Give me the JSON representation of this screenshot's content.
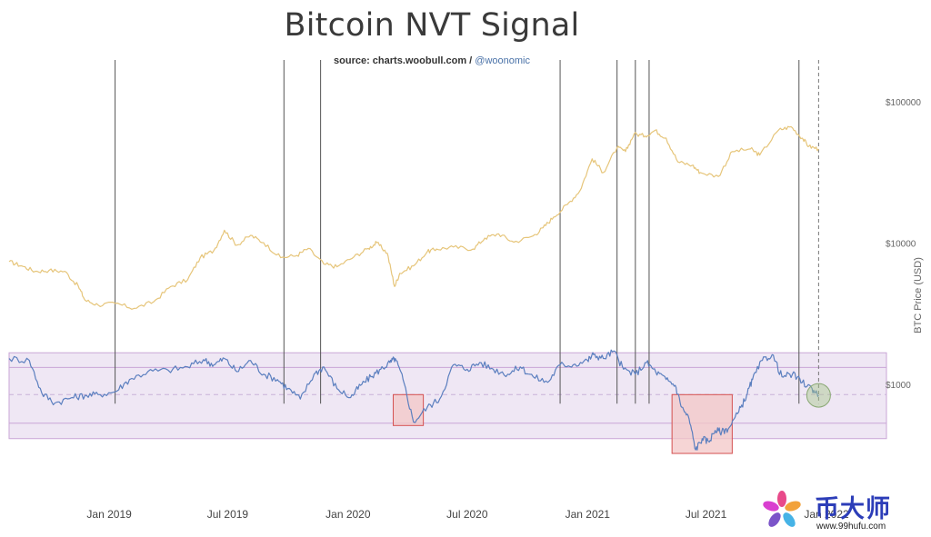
{
  "chart_data": {
    "type": "line",
    "title": "Bitcoin NVT Signal",
    "subtitle_source": "source: charts.woobull.com / ",
    "subtitle_handle": "@woonomic",
    "ylabel": "BTC Price (USD)",
    "y_scale": "log",
    "y_ticks": [
      "$1000",
      "$10000",
      "$100000"
    ],
    "y_tick_values": [
      1000,
      10000,
      100000
    ],
    "ylim": [
      180,
      200000
    ],
    "x_ticks": [
      "Jan 2019",
      "Jul 2019",
      "Jan 2020",
      "Jul 2020",
      "Jan 2021",
      "Jul 2021",
      "Jan 2022"
    ],
    "x_tick_dates": [
      "2019-01-01",
      "2019-07-01",
      "2020-01-01",
      "2020-07-01",
      "2021-01-01",
      "2021-07-01",
      "2022-01-01"
    ],
    "xlim": [
      "2018-08-01",
      "2022-02-20"
    ],
    "series": [
      {
        "name": "BTC Price",
        "color": "#e6c57a",
        "x": [
          "2018-08-01",
          "2018-08-20",
          "2018-09-10",
          "2018-10-01",
          "2018-10-25",
          "2018-11-15",
          "2018-11-25",
          "2018-12-15",
          "2019-01-10",
          "2019-02-08",
          "2019-03-10",
          "2019-04-05",
          "2019-05-01",
          "2019-05-20",
          "2019-06-10",
          "2019-06-26",
          "2019-07-15",
          "2019-08-05",
          "2019-08-25",
          "2019-09-20",
          "2019-10-15",
          "2019-11-01",
          "2019-11-25",
          "2019-12-15",
          "2020-01-10",
          "2020-02-01",
          "2020-02-14",
          "2020-03-01",
          "2020-03-12",
          "2020-03-20",
          "2020-04-10",
          "2020-05-01",
          "2020-05-15",
          "2020-06-10",
          "2020-07-10",
          "2020-07-28",
          "2020-08-18",
          "2020-09-10",
          "2020-10-10",
          "2020-10-25",
          "2020-11-10",
          "2020-12-01",
          "2020-12-20",
          "2021-01-08",
          "2021-01-25",
          "2021-02-15",
          "2021-02-28",
          "2021-03-13",
          "2021-03-30",
          "2021-04-14",
          "2021-05-01",
          "2021-05-19",
          "2021-06-10",
          "2021-06-22",
          "2021-07-20",
          "2021-08-10",
          "2021-09-07",
          "2021-09-21",
          "2021-10-20",
          "2021-11-08",
          "2021-11-25",
          "2021-12-05",
          "2021-12-20"
        ],
        "values": [
          7500,
          7000,
          6400,
          6500,
          6400,
          5000,
          4000,
          3700,
          3800,
          3500,
          3900,
          5000,
          5600,
          8000,
          9000,
          12500,
          9800,
          11500,
          10200,
          8000,
          8300,
          9300,
          7200,
          6900,
          8100,
          9300,
          10200,
          8600,
          5000,
          6200,
          7000,
          8800,
          9200,
          9500,
          9200,
          11000,
          11800,
          10300,
          11400,
          13000,
          15500,
          19000,
          23700,
          40000,
          32000,
          48000,
          45000,
          60000,
          58000,
          63500,
          56000,
          38000,
          36000,
          32000,
          30000,
          45000,
          47000,
          42500,
          64000,
          67500,
          56000,
          49000,
          47000
        ]
      },
      {
        "name": "NVT Signal",
        "color": "#5b7fbf",
        "x": [
          "2018-08-01",
          "2018-09-01",
          "2018-09-20",
          "2018-10-10",
          "2018-11-05",
          "2018-11-25",
          "2018-12-15",
          "2019-01-10",
          "2019-02-01",
          "2019-03-01",
          "2019-04-01",
          "2019-05-01",
          "2019-05-25",
          "2019-06-10",
          "2019-06-26",
          "2019-07-15",
          "2019-08-05",
          "2019-08-25",
          "2019-09-15",
          "2019-10-01",
          "2019-10-20",
          "2019-11-10",
          "2019-11-25",
          "2019-12-15",
          "2020-01-05",
          "2020-01-20",
          "2020-02-05",
          "2020-02-20",
          "2020-03-05",
          "2020-03-13",
          "2020-03-25",
          "2020-04-10",
          "2020-05-01",
          "2020-05-20",
          "2020-06-10",
          "2020-07-01",
          "2020-07-20",
          "2020-08-10",
          "2020-09-01",
          "2020-09-20",
          "2020-10-10",
          "2020-11-01",
          "2020-11-20",
          "2020-12-10",
          "2021-01-01",
          "2021-01-10",
          "2021-01-25",
          "2021-02-10",
          "2021-02-25",
          "2021-03-15",
          "2021-04-01",
          "2021-04-15",
          "2021-05-01",
          "2021-05-15",
          "2021-05-25",
          "2021-06-05",
          "2021-06-15",
          "2021-06-25",
          "2021-07-05",
          "2021-07-15",
          "2021-07-25",
          "2021-08-05",
          "2021-08-20",
          "2021-09-01",
          "2021-09-10",
          "2021-09-25",
          "2021-10-10",
          "2021-10-25",
          "2021-11-10",
          "2021-11-25",
          "2021-12-10",
          "2021-12-20"
        ],
        "values": [
          1550,
          1500,
          880,
          750,
          820,
          850,
          860,
          900,
          1100,
          1250,
          1280,
          1350,
          1520,
          1400,
          1550,
          1250,
          1500,
          1200,
          1100,
          950,
          800,
          1200,
          1350,
          950,
          820,
          1000,
          1150,
          1300,
          1450,
          1550,
          1100,
          550,
          700,
          800,
          1400,
          1300,
          1450,
          1300,
          1200,
          1350,
          1150,
          1050,
          1400,
          1400,
          1500,
          1650,
          1550,
          1750,
          1300,
          1200,
          1450,
          1250,
          1100,
          1000,
          700,
          580,
          350,
          420,
          400,
          480,
          470,
          500,
          650,
          850,
          1100,
          1500,
          1650,
          1150,
          1200,
          1050,
          950,
          850
        ]
      }
    ],
    "vertical_event_lines": [
      "2019-01-10",
      "2019-09-25",
      "2019-11-20",
      "2020-11-20",
      "2021-02-15",
      "2021-03-15",
      "2021-04-05",
      "2021-11-20"
    ],
    "current_marker_date": "2021-12-20",
    "bands": {
      "outer_low": 420,
      "outer_high": 1700,
      "inner_low": 540,
      "inner_high": 1340,
      "median": 860
    },
    "highlight_boxes": [
      {
        "x_start": "2020-03-10",
        "x_end": "2020-04-25",
        "y_low": 520,
        "y_high": 860
      },
      {
        "x_start": "2021-05-10",
        "x_end": "2021-08-10",
        "y_low": 330,
        "y_high": 860
      }
    ]
  },
  "watermark": {
    "brand_text": "币大师",
    "url": "www.99hufu.com"
  },
  "colors": {
    "price": "#e6c57a",
    "nvt": "#5b7fbf",
    "band_fill": "#e9dff0",
    "band_stroke": "#c9a6d6",
    "highlight_fill": "#f3c7c7",
    "highlight_stroke": "#d45050",
    "event_line": "#555555",
    "current_marker": "#a6c68a"
  }
}
